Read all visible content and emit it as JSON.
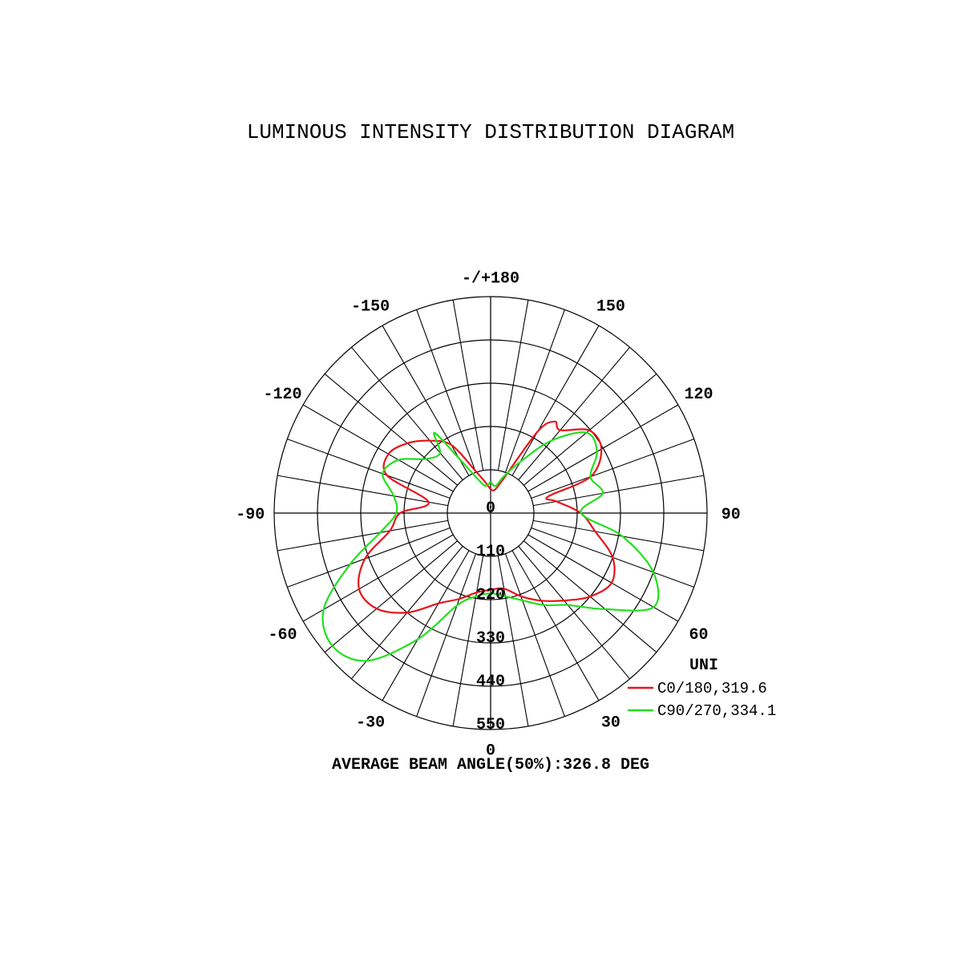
{
  "chart_data": {
    "type": "polar",
    "title": "LUMINOUS INTENSITY DISTRIBUTION DIAGRAM",
    "angle_tick_labels": [
      {
        "angle": 180,
        "label": "-/+180"
      },
      {
        "angle": 150,
        "label": "150"
      },
      {
        "angle": 120,
        "label": "120"
      },
      {
        "angle": 90,
        "label": "90"
      },
      {
        "angle": 60,
        "label": "60"
      },
      {
        "angle": 30,
        "label": "30"
      },
      {
        "angle": 0,
        "label": "0"
      },
      {
        "angle": -30,
        "label": "-30"
      },
      {
        "angle": -60,
        "label": "-60"
      },
      {
        "angle": -90,
        "label": "-90"
      },
      {
        "angle": -120,
        "label": "-120"
      },
      {
        "angle": -150,
        "label": "-150"
      }
    ],
    "radial_tick_labels": [
      "0",
      "110",
      "220",
      "330",
      "440",
      "550"
    ],
    "radial_ticks": [
      0,
      110,
      220,
      330,
      440,
      550
    ],
    "rlim": [
      0,
      550
    ],
    "angle_grid_step_deg": 10,
    "zero_direction": "bottom",
    "grid": true,
    "unit_label": "UNI",
    "legend_placement": "bottom-right",
    "series": [
      {
        "name": "C0/180,319.6",
        "color": "#e8141c",
        "angles": [
          -180,
          -170,
          -160,
          -150,
          -140,
          -130,
          -120,
          -110,
          -100,
          -90,
          -80,
          -70,
          -60,
          -50,
          -40,
          -30,
          -20,
          -10,
          0,
          10,
          20,
          30,
          40,
          50,
          60,
          70,
          80,
          90,
          100,
          106,
          110,
          120,
          130,
          140,
          145,
          150,
          160,
          170,
          180
        ],
        "values": [
          60,
          80,
          115,
          200,
          240,
          276,
          300,
          280,
          160,
          230,
          260,
          340,
          386,
          378,
          330,
          265,
          232,
          205,
          195,
          195,
          225,
          257,
          290,
          330,
          355,
          330,
          270,
          229,
          170,
          152,
          270,
          325,
          327,
          275,
          284,
          240,
          90,
          60,
          60
        ]
      },
      {
        "name": "C90/270,334.1",
        "color": "#22e01e",
        "angles": [
          -180,
          -170,
          -160,
          -150,
          -145,
          -140,
          -130,
          -120,
          -110,
          -100,
          -90,
          -80,
          -70,
          -60,
          -50,
          -40,
          -30,
          -20,
          -10,
          0,
          10,
          20,
          30,
          40,
          50,
          60,
          70,
          80,
          90,
          100,
          110,
          120,
          130,
          140,
          150,
          160,
          170,
          180
        ],
        "values": [
          80,
          70,
          90,
          160,
          249,
          200,
          214,
          270,
          292,
          250,
          240,
          285,
          380,
          490,
          525,
          490,
          370,
          250,
          215,
          204,
          215,
          236,
          270,
          305,
          380,
          478,
          440,
          340,
          230,
          289,
          270,
          312,
          318,
          240,
          150,
          100,
          70,
          80
        ]
      }
    ],
    "footer": "AVERAGE BEAM ANGLE(50%):326.8 DEG"
  }
}
